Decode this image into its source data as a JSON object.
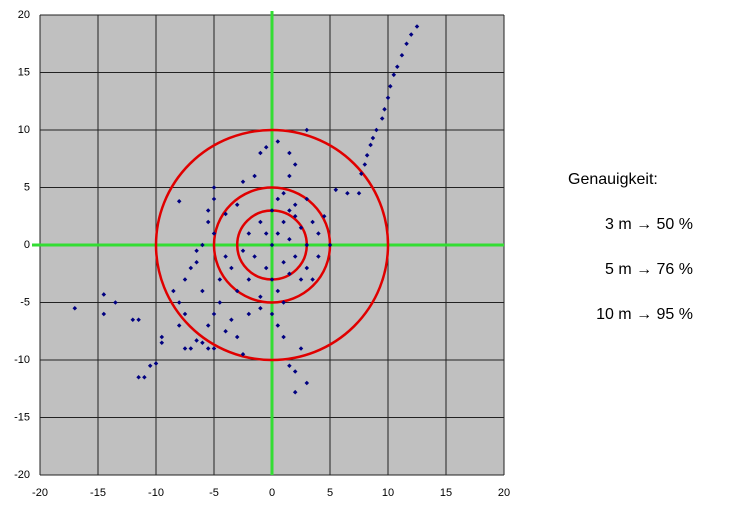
{
  "chart_data": {
    "type": "scatter",
    "x": [
      12.5,
      12,
      11.6,
      11.2,
      10.8,
      10.5,
      10.2,
      10,
      9.7,
      9.5,
      9,
      8.7,
      8.5,
      8.2,
      8,
      7.7,
      6.5,
      7.5,
      5.5,
      3,
      0.5,
      1.5,
      -0.5,
      -1,
      2,
      -1.5,
      1.5,
      -2.5,
      -5,
      -5,
      -8,
      -5.5,
      -4,
      -17,
      -14.5,
      -14.5,
      -13.5,
      -12,
      -11.5,
      -11,
      -11.5,
      -10.5,
      -10,
      -9.5,
      -9.5,
      -8,
      -7.5,
      -7.5,
      -7,
      -6.5,
      -6,
      -5.5,
      -5,
      -8.5,
      -8,
      -7.5,
      -7,
      -6.5,
      -6,
      -5,
      -5.5,
      -4,
      -3.5,
      -3,
      -2.5,
      -4.5,
      -6,
      -6.5,
      -5.5,
      -5,
      -4,
      -4.5,
      -3,
      -3.5,
      2,
      3,
      2,
      1.5,
      2.5,
      1,
      0.5,
      0,
      0.5,
      1,
      1.5,
      2,
      2.5,
      3,
      3.5,
      4,
      0,
      0.5,
      1,
      2,
      3,
      -1,
      -2,
      -1.5,
      -0.5,
      0,
      0.5,
      1,
      -1,
      -2,
      1.5,
      2.5,
      3,
      4,
      -1,
      0,
      -2,
      1,
      2,
      -0.5,
      4.5,
      -3,
      -2.5,
      3.5,
      5,
      1.5
    ],
    "values": [
      19,
      18.3,
      17.5,
      16.5,
      15.5,
      14.8,
      13.8,
      12.8,
      11.8,
      11,
      10,
      9.3,
      8.7,
      7.8,
      7,
      6.2,
      4.5,
      4.5,
      4.8,
      10,
      9,
      8,
      8.5,
      8,
      7,
      6,
      6,
      5.5,
      5,
      4,
      3.8,
      3,
      2.7,
      -5.5,
      -4.3,
      -6,
      -5,
      -6.5,
      -6.5,
      -11.5,
      -11.5,
      -10.5,
      -10.3,
      -8,
      -8.5,
      -7,
      -6,
      -9,
      -9,
      -8.3,
      -8.5,
      -9,
      -9,
      -4,
      -5,
      -3,
      -2,
      -1.5,
      -4,
      -6,
      -7,
      -7.5,
      -6.5,
      -8,
      -9.5,
      -5,
      0,
      -0.5,
      2,
      1,
      -1,
      -3,
      -4,
      -2,
      -11,
      -12,
      -12.8,
      -10.5,
      -9,
      -8,
      -7,
      0,
      1,
      2,
      0.5,
      -1,
      1.5,
      0,
      2,
      1,
      3,
      4,
      4.5,
      3.5,
      4,
      2,
      1,
      -1,
      -2,
      -3,
      -4,
      -5,
      -4.5,
      -3,
      -2.5,
      -3,
      -2,
      -1,
      -5.5,
      -6,
      -6,
      -1.5,
      2.5,
      1,
      2.5,
      3.5,
      -0.5,
      -3,
      0,
      3
    ],
    "color": "#000080",
    "xlim": [
      -20,
      20
    ],
    "ylim": [
      -20,
      20
    ],
    "xticks": [
      -20,
      -15,
      -10,
      -5,
      0,
      5,
      10,
      15,
      20
    ],
    "yticks": [
      -20,
      -15,
      -10,
      -5,
      0,
      5,
      10,
      15,
      20
    ],
    "grid": true,
    "crosshair_color": "#33dd33",
    "circles": {
      "radii": [
        3,
        5,
        10
      ],
      "color": "#e00000"
    },
    "annotations": [
      "Genauigkeit:",
      "3 m → 50 %",
      "5 m → 76 %",
      "10 m → 95 %"
    ]
  }
}
